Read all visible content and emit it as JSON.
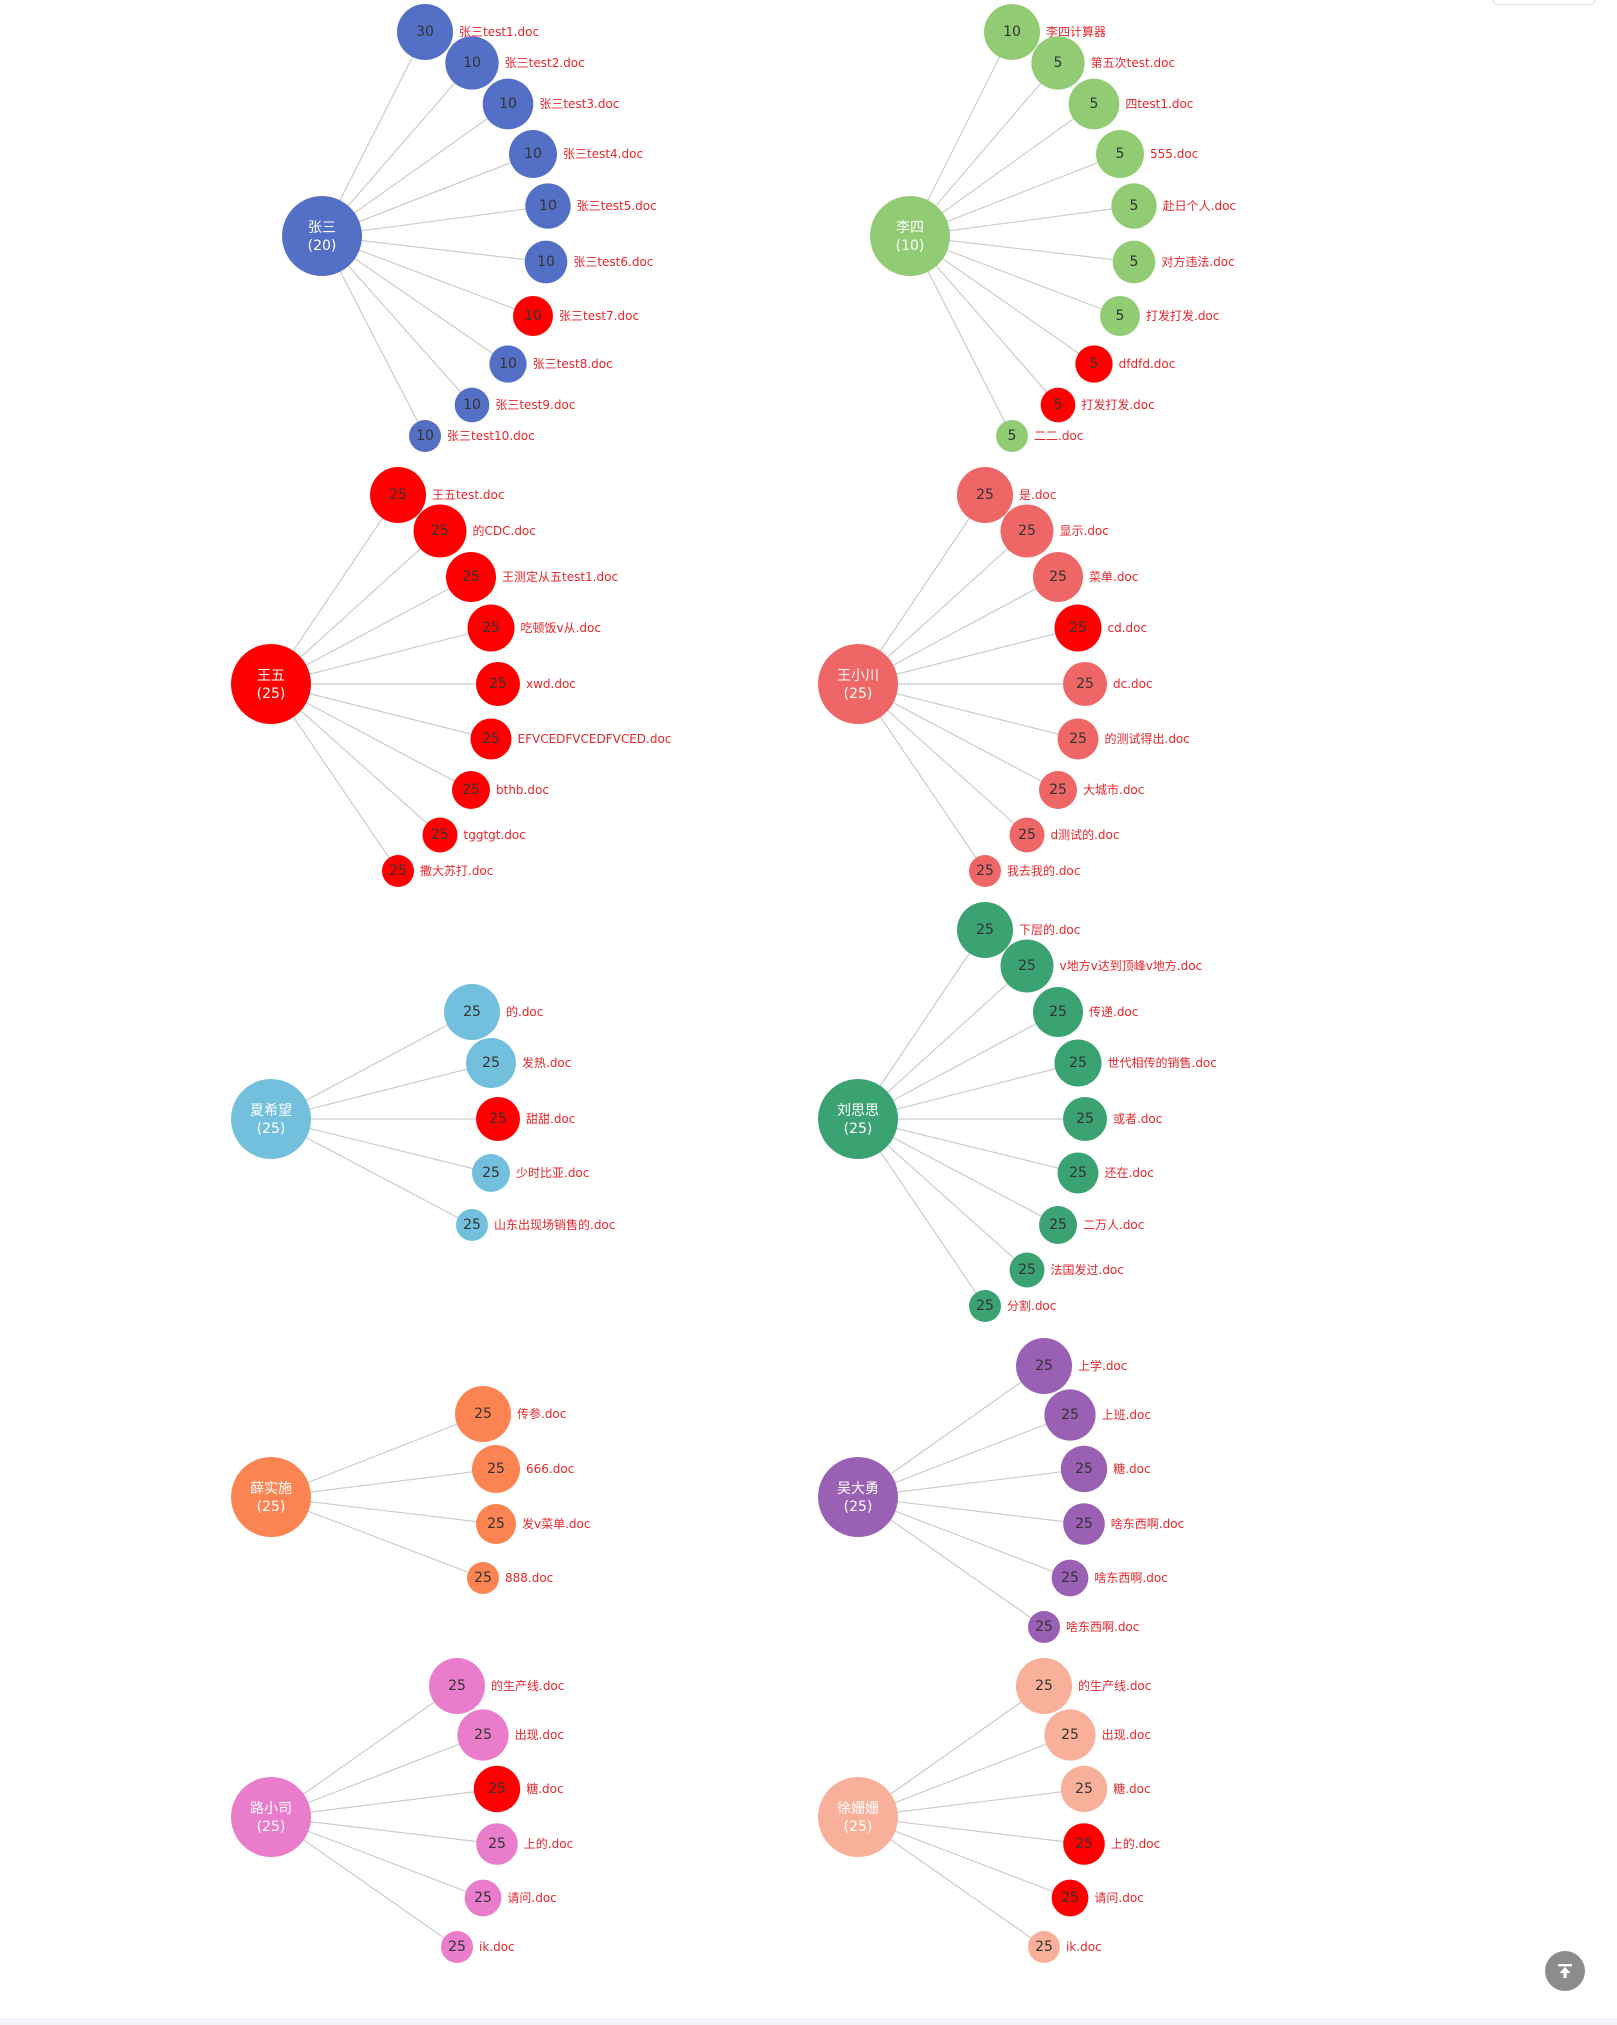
{
  "colors": {
    "highlight": "#ff0000",
    "label": "#e5262b",
    "link": "#cccccc"
  },
  "icons": {
    "back_to_top": "arrow-up-to-line-icon"
  },
  "groups": [
    {
      "name": "张三",
      "count": "(20)",
      "color": "#5470c6",
      "children": [
        {
          "label": "张三test1.doc",
          "value": 30
        },
        {
          "label": "张三test2.doc",
          "value": 10
        },
        {
          "label": "张三test3.doc",
          "value": 10
        },
        {
          "label": "张三test4.doc",
          "value": 10
        },
        {
          "label": "张三test5.doc",
          "value": 10
        },
        {
          "label": "张三test6.doc",
          "value": 10
        },
        {
          "label": "张三test7.doc",
          "value": 10,
          "highlight": true
        },
        {
          "label": "张三test8.doc",
          "value": 10
        },
        {
          "label": "张三test9.doc",
          "value": 10
        },
        {
          "label": "张三test10.doc",
          "value": 10
        }
      ]
    },
    {
      "name": "李四",
      "count": "(10)",
      "color": "#91cc75",
      "children": [
        {
          "label": "李四计算器",
          "value": 10
        },
        {
          "label": "第五次test.doc",
          "value": 5
        },
        {
          "label": "四test1.doc",
          "value": 5
        },
        {
          "label": "555.doc",
          "value": 5
        },
        {
          "label": "赴日个人.doc",
          "value": 5
        },
        {
          "label": "对方违法.doc",
          "value": 5
        },
        {
          "label": "打发打发.doc",
          "value": 5
        },
        {
          "label": "dfdfd.doc",
          "value": 5,
          "highlight": true
        },
        {
          "label": "打发打发.doc",
          "value": 5,
          "highlight": true
        },
        {
          "label": "二二.doc",
          "value": 5
        }
      ]
    },
    {
      "name": "王五",
      "count": "(25)",
      "color": "#ff0000",
      "children": [
        {
          "label": "王五test.doc",
          "value": 25
        },
        {
          "label": "的CDC.doc",
          "value": 25
        },
        {
          "label": "王测定从五test1.doc",
          "value": 25
        },
        {
          "label": "吃顿饭v从.doc",
          "value": 25
        },
        {
          "label": "xwd.doc",
          "value": 25
        },
        {
          "label": "EFVCEDFVCEDFVCED.doc",
          "value": 25
        },
        {
          "label": "bthb.doc",
          "value": 25
        },
        {
          "label": "tggtgt.doc",
          "value": 25
        },
        {
          "label": "撒大苏打.doc",
          "value": 25
        }
      ]
    },
    {
      "name": "王小川",
      "count": "(25)",
      "color": "#ee6666",
      "children": [
        {
          "label": "是.doc",
          "value": 25
        },
        {
          "label": "显示.doc",
          "value": 25
        },
        {
          "label": "菜单.doc",
          "value": 25
        },
        {
          "label": "cd.doc",
          "value": 25,
          "highlight": true
        },
        {
          "label": "dc.doc",
          "value": 25
        },
        {
          "label": "的测试得出.doc",
          "value": 25
        },
        {
          "label": "大城市.doc",
          "value": 25
        },
        {
          "label": "d测试的.doc",
          "value": 25
        },
        {
          "label": "我去我的.doc",
          "value": 25
        }
      ]
    },
    {
      "name": "夏希望",
      "count": "(25)",
      "color": "#73c0de",
      "children": [
        {
          "label": "的.doc",
          "value": 25
        },
        {
          "label": "发热.doc",
          "value": 25
        },
        {
          "label": "甜甜.doc",
          "value": 25,
          "highlight": true
        },
        {
          "label": "少时比亚.doc",
          "value": 25
        },
        {
          "label": "山东出现场销售的.doc",
          "value": 25
        }
      ]
    },
    {
      "name": "刘思思",
      "count": "(25)",
      "color": "#3ba272",
      "children": [
        {
          "label": "下层的.doc",
          "value": 25
        },
        {
          "label": "v地方v达到顶峰v地方.doc",
          "value": 25
        },
        {
          "label": "传递.doc",
          "value": 25
        },
        {
          "label": "世代相传的销售.doc",
          "value": 25
        },
        {
          "label": "或者.doc",
          "value": 25
        },
        {
          "label": "还在.doc",
          "value": 25
        },
        {
          "label": "二万人.doc",
          "value": 25
        },
        {
          "label": "法国发过.doc",
          "value": 25
        },
        {
          "label": "分割.doc",
          "value": 25
        }
      ]
    },
    {
      "name": "薛实施",
      "count": "(25)",
      "color": "#fc8452",
      "children": [
        {
          "label": "传参.doc",
          "value": 25
        },
        {
          "label": "666.doc",
          "value": 25
        },
        {
          "label": "发v菜单.doc",
          "value": 25
        },
        {
          "label": "888.doc",
          "value": 25
        }
      ]
    },
    {
      "name": "吴大勇",
      "count": "(25)",
      "color": "#9a60b4",
      "children": [
        {
          "label": "上学.doc",
          "value": 25
        },
        {
          "label": "上班.doc",
          "value": 25
        },
        {
          "label": "糖.doc",
          "value": 25
        },
        {
          "label": "啥东西啊.doc",
          "value": 25
        },
        {
          "label": "啥东西啊.doc",
          "value": 25
        },
        {
          "label": "啥东西啊.doc",
          "value": 25
        }
      ]
    },
    {
      "name": "路小司",
      "count": "(25)",
      "color": "#ea7ccc",
      "children": [
        {
          "label": "的生产线.doc",
          "value": 25
        },
        {
          "label": "出现.doc",
          "value": 25
        },
        {
          "label": "糖.doc",
          "value": 25,
          "highlight": true
        },
        {
          "label": "上的.doc",
          "value": 25
        },
        {
          "label": "请问.doc",
          "value": 25
        },
        {
          "label": "ik.doc",
          "value": 25
        }
      ]
    },
    {
      "name": "徐姗姗",
      "count": "(25)",
      "color": "#f9b09a",
      "children": [
        {
          "label": "的生产线.doc",
          "value": 25
        },
        {
          "label": "出现.doc",
          "value": 25
        },
        {
          "label": "糖.doc",
          "value": 25
        },
        {
          "label": "上的.doc",
          "value": 25,
          "highlight": true
        },
        {
          "label": "请问.doc",
          "value": 25,
          "highlight": true
        },
        {
          "label": "ik.doc",
          "value": 25
        }
      ]
    }
  ]
}
